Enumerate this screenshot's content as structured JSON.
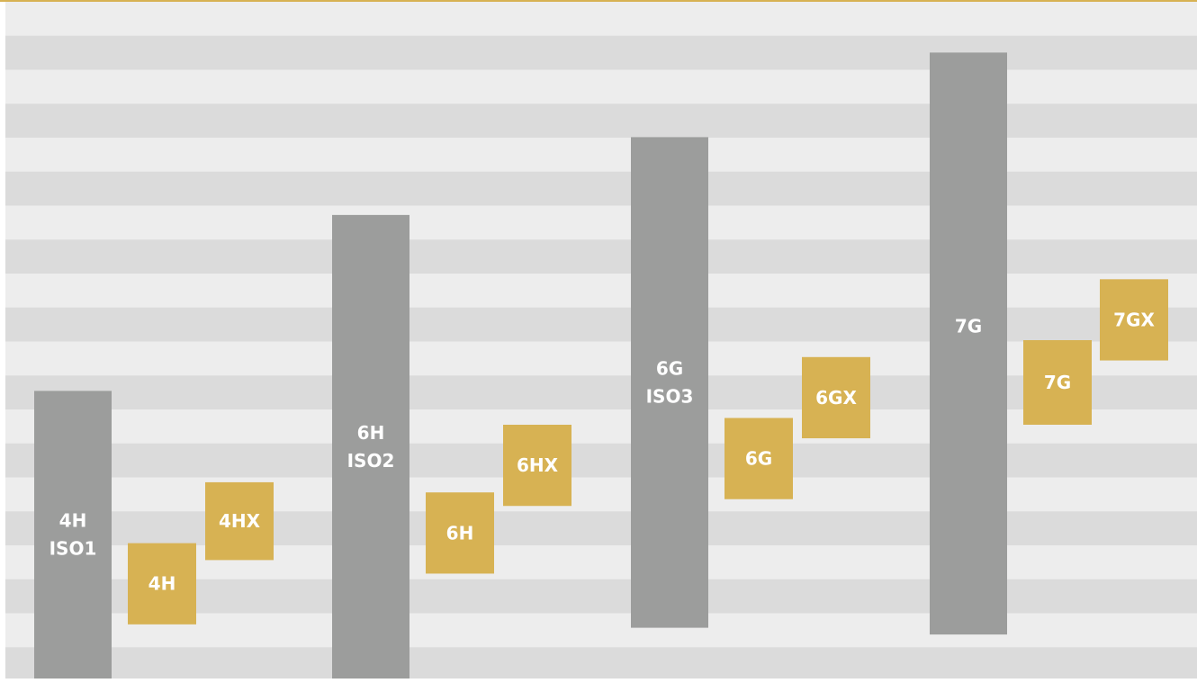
{
  "chart_data": {
    "type": "bar",
    "title": "",
    "xlabel": "",
    "ylabel": "",
    "grid": true,
    "groups": [
      {
        "tolerance_band": {
          "label_lines": [
            "4H",
            "ISO1"
          ],
          "low": 0.0,
          "high": 8.5
        },
        "classes": [
          {
            "label": "4H",
            "low": 1.6,
            "high": 4.0
          },
          {
            "label": "4HX",
            "low": 3.5,
            "high": 5.8
          }
        ]
      },
      {
        "tolerance_band": {
          "label_lines": [
            "6H",
            "ISO2"
          ],
          "low": 0.0,
          "high": 13.7
        },
        "classes": [
          {
            "label": "6H",
            "low": 3.1,
            "high": 5.5
          },
          {
            "label": "6HX",
            "low": 5.1,
            "high": 7.5
          }
        ]
      },
      {
        "tolerance_band": {
          "label_lines": [
            "6G",
            "ISO3"
          ],
          "low": 1.5,
          "high": 16.0
        },
        "classes": [
          {
            "label": "6G",
            "low": 5.3,
            "high": 7.7
          },
          {
            "label": "6GX",
            "low": 7.1,
            "high": 9.5
          }
        ]
      },
      {
        "tolerance_band": {
          "label_lines": [
            "7G"
          ],
          "low": 1.3,
          "high": 18.5
        },
        "classes": [
          {
            "label": "7G",
            "low": 7.5,
            "high": 10.0
          },
          {
            "label": "7GX",
            "low": 9.4,
            "high": 11.8
          }
        ]
      }
    ],
    "y_range": [
      0,
      20
    ],
    "colors": {
      "tolerance_band": "#9c9d9c",
      "class": "#d7b253",
      "stripe_light": "#ededed",
      "stripe_dark": "#dbdbdb",
      "top_rule": "#d7b253"
    }
  }
}
